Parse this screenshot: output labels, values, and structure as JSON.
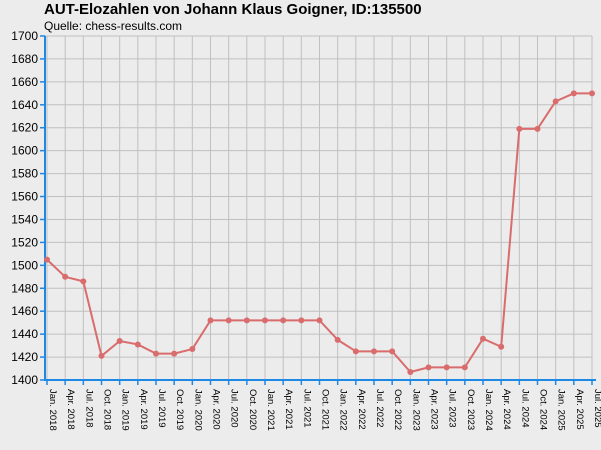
{
  "chart_data": {
    "type": "line",
    "title": "AUT-Elozahlen von Johann Klaus Goigner, ID:135500",
    "subtitle": "Quelle: chess-results.com",
    "xlabel": "",
    "ylabel": "",
    "ylim": [
      1400,
      1700
    ],
    "yticks": [
      1400,
      1420,
      1440,
      1460,
      1480,
      1500,
      1520,
      1540,
      1560,
      1580,
      1600,
      1620,
      1640,
      1660,
      1680,
      1700
    ],
    "categories": [
      "Jan. 2018",
      "Apr. 2018",
      "Jul. 2018",
      "Oct. 2018",
      "Jan. 2019",
      "Apr. 2019",
      "Jul. 2019",
      "Oct. 2019",
      "Jan. 2020",
      "Apr. 2020",
      "Jul. 2020",
      "Oct. 2020",
      "Jan. 2021",
      "Apr. 2021",
      "Jul. 2021",
      "Oct. 2021",
      "Jan. 2022",
      "Apr. 2022",
      "Jul. 2022",
      "Oct. 2022",
      "Jan. 2023",
      "Apr. 2023",
      "Jul. 2023",
      "Oct. 2023",
      "Jan. 2024",
      "Apr. 2024",
      "Jul. 2024",
      "Oct. 2024",
      "Jan. 2025",
      "Apr. 2025",
      "Jul. 2025"
    ],
    "series": [
      {
        "values": [
          1505,
          1490,
          1486,
          1421,
          1434,
          1431,
          1423,
          1423,
          1427,
          1452,
          1452,
          1452,
          1452,
          1452,
          1452,
          1452,
          1435,
          1425,
          1425,
          1425,
          1407,
          1411,
          1411,
          1411,
          1436,
          1429,
          1619,
          1619,
          1643,
          1650,
          1650
        ],
        "color": "#d96c6c"
      }
    ],
    "grid": true,
    "axis_color": "#1e88e5",
    "grid_color": "#c0c0c0"
  }
}
